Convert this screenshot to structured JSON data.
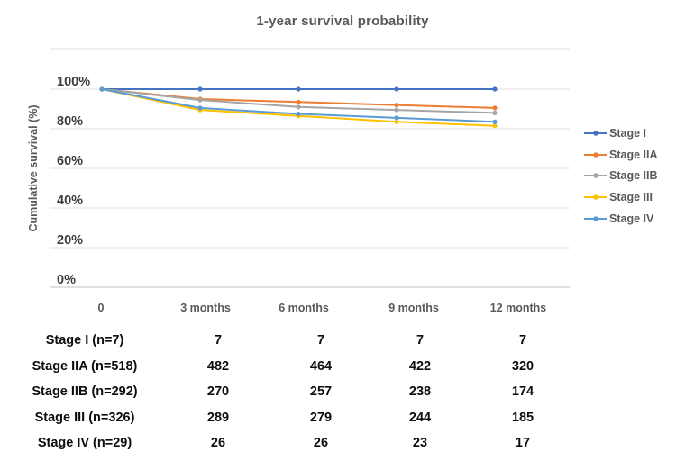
{
  "chart_data": {
    "type": "line",
    "title": "1-year survival probability",
    "xlabel": "",
    "ylabel": "Cumulative survival (%)",
    "x_categories": [
      "0",
      "3 months",
      "6 months",
      "9 months",
      "12 months"
    ],
    "y_ticks": [
      "100%",
      "80%",
      "60%",
      "40%",
      "20%",
      "0%"
    ],
    "ylim": [
      0,
      100
    ],
    "grid": true,
    "legend_position": "right",
    "series": [
      {
        "name": "Stage I",
        "color": "#4472C4",
        "values": [
          100,
          100,
          100,
          100,
          100
        ]
      },
      {
        "name": "Stage IIA",
        "color": "#ED7D31",
        "values": [
          100,
          95,
          93.5,
          92,
          90.5
        ]
      },
      {
        "name": "Stage IIB",
        "color": "#A5A5A5",
        "values": [
          100,
          94.5,
          91,
          89.5,
          88
        ]
      },
      {
        "name": "Stage III",
        "color": "#FFC000",
        "values": [
          100,
          89.5,
          86.5,
          83.5,
          81.5
        ]
      },
      {
        "name": "Stage IV",
        "color": "#5B9BD5",
        "values": [
          100,
          90.5,
          87.5,
          85.5,
          83.5
        ]
      }
    ]
  },
  "risk_table": {
    "rows": [
      {
        "label": "Stage I (n=7)",
        "values": [
          "7",
          "7",
          "7",
          "7"
        ]
      },
      {
        "label": "Stage IIA (n=518)",
        "values": [
          "482",
          "464",
          "422",
          "320"
        ]
      },
      {
        "label": "Stage IIB (n=292)",
        "values": [
          "270",
          "257",
          "238",
          "174"
        ]
      },
      {
        "label": "Stage III (n=326)",
        "values": [
          "289",
          "279",
          "244",
          "185"
        ]
      },
      {
        "label": "Stage IV (n=29)",
        "values": [
          "26",
          "26",
          "23",
          "17"
        ]
      }
    ]
  }
}
